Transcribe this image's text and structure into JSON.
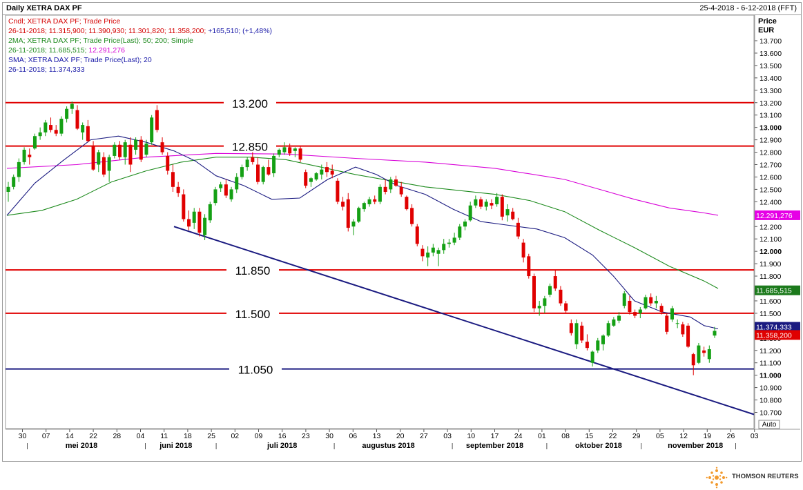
{
  "header": {
    "title": "Daily XETRA DAX PF",
    "date_range": "25-4-2018 - 6-12-2018 (FFT)"
  },
  "legend": [
    {
      "text": "Cndl; XETRA DAX PF; Trade Price",
      "color": "#d40000"
    },
    {
      "text": "26-11-2018; 11.315,900; 11.390,930; 11.301,820; 11.358,200; ",
      "color": "#d40000",
      "extra": "+165,510; (+1,48%)",
      "extra_color": "#1a1aa8"
    },
    {
      "text": "2MA; XETRA DAX PF; Trade Price(Last);  50; 200; Simple",
      "color": "#1e8a1e"
    },
    {
      "text": "26-11-2018; 11.685,515; ",
      "color": "#1e8a1e",
      "extra": "12.291,276",
      "extra_color": "#d400d4"
    },
    {
      "text": "SMA; XETRA DAX PF; Trade Price(Last);  20",
      "color": "#1a1aa8"
    },
    {
      "text": "26-11-2018; 11.374,333",
      "color": "#1a1aa8"
    }
  ],
  "chart_data": {
    "type": "candlestick",
    "title": "Daily XETRA DAX PF",
    "ylabel_top": "Price",
    "ylabel_unit": "EUR",
    "ylim": [
      10650,
      13750
    ],
    "y_ticks": [
      {
        "v": 13700,
        "label": "13.700"
      },
      {
        "v": 13600,
        "label": "13.600"
      },
      {
        "v": 13500,
        "label": "13.500"
      },
      {
        "v": 13400,
        "label": "13.400"
      },
      {
        "v": 13300,
        "label": "13.300"
      },
      {
        "v": 13200,
        "label": "13.200"
      },
      {
        "v": 13100,
        "label": "13.100"
      },
      {
        "v": 13000,
        "label": "13.000",
        "bold": true
      },
      {
        "v": 12900,
        "label": "12.900"
      },
      {
        "v": 12800,
        "label": "12.800"
      },
      {
        "v": 12700,
        "label": "12.700"
      },
      {
        "v": 12600,
        "label": "12.600"
      },
      {
        "v": 12500,
        "label": "12.500"
      },
      {
        "v": 12400,
        "label": "12.400"
      },
      {
        "v": 12300,
        "label": "12.300"
      },
      {
        "v": 12200,
        "label": "12.200"
      },
      {
        "v": 12100,
        "label": "12.100"
      },
      {
        "v": 12000,
        "label": "12.000",
        "bold": true
      },
      {
        "v": 11900,
        "label": "11.900"
      },
      {
        "v": 11800,
        "label": "11.800"
      },
      {
        "v": 11700,
        "label": "11.700"
      },
      {
        "v": 11600,
        "label": "11.600"
      },
      {
        "v": 11500,
        "label": "11.500"
      },
      {
        "v": 11400,
        "label": "11.400"
      },
      {
        "v": 11300,
        "label": "11.300"
      },
      {
        "v": 11200,
        "label": "11.200"
      },
      {
        "v": 11100,
        "label": "11.100"
      },
      {
        "v": 11000,
        "label": "11.000",
        "bold": true
      },
      {
        "v": 10900,
        "label": "10.900"
      },
      {
        "v": 10800,
        "label": "10.800"
      },
      {
        "v": 10700,
        "label": "10.700"
      }
    ],
    "x_days": [
      "30",
      "07",
      "14",
      "22",
      "28",
      "04",
      "11",
      "18",
      "25",
      "02",
      "09",
      "16",
      "23",
      "30",
      "06",
      "13",
      "20",
      "27",
      "03",
      "10",
      "17",
      "24",
      "01",
      "08",
      "15",
      "22",
      "29",
      "05",
      "12",
      "19",
      "26",
      "03"
    ],
    "x_months": [
      "mei 2018",
      "juni 2018",
      "juli 2018",
      "augustus 2018",
      "september 2018",
      "oktober 2018",
      "november 2018"
    ],
    "axis_button": "Auto",
    "horizontal_levels": [
      {
        "value": 13200,
        "label": "13.200",
        "color": "#e00000"
      },
      {
        "value": 12850,
        "label": "12.850",
        "color": "#e00000"
      },
      {
        "value": 11850,
        "label": "11.850",
        "color": "#e00000"
      },
      {
        "value": 11500,
        "label": "11.500",
        "color": "#e00000"
      },
      {
        "value": 11050,
        "label": "11.050",
        "color": "#1a1a80"
      }
    ],
    "trendline": {
      "from": {
        "day": "18 jun",
        "value": 12200
      },
      "to": {
        "day": "03 dec",
        "value": 10700
      },
      "color": "#1a1a80"
    },
    "last_values": [
      {
        "label": "12.291,276",
        "value": 12291,
        "bg": "#e600e6"
      },
      {
        "label": "11.685,515",
        "value": 11685,
        "bg": "#1c7a1c"
      },
      {
        "label": "11.374,333",
        "value": 11374,
        "bg": "#1a1a80"
      },
      {
        "label": "11.358,200",
        "value": 11358,
        "bg": "#e00000"
      }
    ],
    "series": [
      {
        "name": "Cndl; XETRA DAX PF; Trade Price",
        "type": "candlestick"
      },
      {
        "name": "2MA 50",
        "color": "#1c8a1c",
        "points": [
          [
            0,
            12290
          ],
          [
            50,
            12330
          ],
          [
            100,
            12420
          ],
          [
            150,
            12560
          ],
          [
            200,
            12650
          ],
          [
            250,
            12720
          ],
          [
            300,
            12760
          ],
          [
            350,
            12760
          ],
          [
            400,
            12740
          ],
          [
            450,
            12680
          ],
          [
            500,
            12620
          ],
          [
            550,
            12570
          ],
          [
            600,
            12520
          ],
          [
            650,
            12490
          ],
          [
            700,
            12460
          ],
          [
            750,
            12410
          ],
          [
            800,
            12320
          ],
          [
            850,
            12170
          ],
          [
            900,
            12030
          ],
          [
            950,
            11880
          ],
          [
            1000,
            11760
          ],
          [
            1020,
            11700
          ]
        ]
      },
      {
        "name": "2MA 200",
        "color": "#d800d8",
        "points": [
          [
            0,
            12670
          ],
          [
            100,
            12700
          ],
          [
            200,
            12760
          ],
          [
            300,
            12790
          ],
          [
            400,
            12785
          ],
          [
            500,
            12750
          ],
          [
            600,
            12720
          ],
          [
            700,
            12670
          ],
          [
            800,
            12580
          ],
          [
            850,
            12500
          ],
          [
            900,
            12420
          ],
          [
            950,
            12350
          ],
          [
            1000,
            12310
          ],
          [
            1020,
            12291
          ]
        ]
      },
      {
        "name": "SMA 20",
        "color": "#1a1a80",
        "points": [
          [
            0,
            12290
          ],
          [
            40,
            12550
          ],
          [
            80,
            12730
          ],
          [
            120,
            12900
          ],
          [
            160,
            12930
          ],
          [
            200,
            12880
          ],
          [
            240,
            12810
          ],
          [
            270,
            12730
          ],
          [
            300,
            12610
          ],
          [
            340,
            12530
          ],
          [
            380,
            12420
          ],
          [
            420,
            12430
          ],
          [
            460,
            12580
          ],
          [
            500,
            12680
          ],
          [
            530,
            12620
          ],
          [
            560,
            12530
          ],
          [
            600,
            12460
          ],
          [
            640,
            12340
          ],
          [
            680,
            12240
          ],
          [
            720,
            12210
          ],
          [
            760,
            12180
          ],
          [
            800,
            12110
          ],
          [
            840,
            11970
          ],
          [
            870,
            11800
          ],
          [
            900,
            11600
          ],
          [
            940,
            11510
          ],
          [
            980,
            11470
          ],
          [
            1000,
            11400
          ],
          [
            1020,
            11374
          ]
        ]
      }
    ],
    "candles": [
      [
        12480,
        12560,
        12400,
        12520
      ],
      [
        12520,
        12620,
        12500,
        12600
      ],
      [
        12600,
        12750,
        12560,
        12720
      ],
      [
        12720,
        12840,
        12700,
        12820
      ],
      [
        12780,
        12830,
        12700,
        12760
      ],
      [
        12830,
        12950,
        12820,
        12930
      ],
      [
        12930,
        13000,
        12900,
        12960
      ],
      [
        12960,
        13060,
        12930,
        13040
      ],
      [
        13020,
        13080,
        12960,
        12980
      ],
      [
        12980,
        13020,
        12930,
        12950
      ],
      [
        12950,
        13090,
        12930,
        13070
      ],
      [
        13070,
        13170,
        13040,
        13150
      ],
      [
        13150,
        13210,
        13110,
        13190
      ],
      [
        13140,
        13180,
        12980,
        12990
      ],
      [
        12960,
        13040,
        12900,
        13020
      ],
      [
        13010,
        13060,
        12880,
        12890
      ],
      [
        12850,
        12890,
        12650,
        12660
      ],
      [
        12700,
        12820,
        12640,
        12800
      ],
      [
        12760,
        12800,
        12600,
        12620
      ],
      [
        12650,
        12780,
        12560,
        12760
      ],
      [
        12770,
        12880,
        12750,
        12860
      ],
      [
        12860,
        12890,
        12740,
        12760
      ],
      [
        12760,
        12900,
        12700,
        12880
      ],
      [
        12860,
        12920,
        12640,
        12700
      ],
      [
        12820,
        12920,
        12780,
        12900
      ],
      [
        12900,
        12930,
        12720,
        12740
      ],
      [
        12780,
        12900,
        12760,
        12870
      ],
      [
        12880,
        13100,
        12860,
        13080
      ],
      [
        13140,
        13180,
        12960,
        12980
      ],
      [
        12880,
        12920,
        12780,
        12800
      ],
      [
        12770,
        12800,
        12620,
        12650
      ],
      [
        12640,
        12700,
        12480,
        12520
      ],
      [
        12520,
        12560,
        12440,
        12470
      ],
      [
        12460,
        12500,
        12240,
        12260
      ],
      [
        12260,
        12330,
        12170,
        12200
      ],
      [
        12230,
        12350,
        12180,
        12320
      ],
      [
        12320,
        12350,
        12120,
        12150
      ],
      [
        12130,
        12300,
        12090,
        12270
      ],
      [
        12250,
        12400,
        12230,
        12380
      ],
      [
        12390,
        12520,
        12370,
        12500
      ],
      [
        12510,
        12560,
        12480,
        12540
      ],
      [
        12540,
        12580,
        12430,
        12450
      ],
      [
        12420,
        12520,
        12400,
        12500
      ],
      [
        12500,
        12630,
        12470,
        12600
      ],
      [
        12600,
        12700,
        12580,
        12680
      ],
      [
        12680,
        12760,
        12650,
        12740
      ],
      [
        12760,
        12800,
        12700,
        12720
      ],
      [
        12700,
        12760,
        12540,
        12560
      ],
      [
        12560,
        12690,
        12540,
        12680
      ],
      [
        12680,
        12740,
        12610,
        12620
      ],
      [
        12630,
        12790,
        12600,
        12770
      ],
      [
        12780,
        12830,
        12760,
        12820
      ],
      [
        12800,
        12880,
        12780,
        12840
      ],
      [
        12840,
        12870,
        12770,
        12790
      ],
      [
        12810,
        12840,
        12760,
        12830
      ],
      [
        12830,
        12850,
        12720,
        12740
      ],
      [
        12640,
        12660,
        12510,
        12530
      ],
      [
        12560,
        12600,
        12520,
        12590
      ],
      [
        12580,
        12640,
        12570,
        12630
      ],
      [
        12620,
        12700,
        12580,
        12660
      ],
      [
        12680,
        12720,
        12600,
        12640
      ],
      [
        12650,
        12700,
        12590,
        12620
      ],
      [
        12570,
        12590,
        12380,
        12400
      ],
      [
        12400,
        12440,
        12330,
        12360
      ],
      [
        12420,
        12470,
        12160,
        12190
      ],
      [
        12200,
        12260,
        12130,
        12240
      ],
      [
        12240,
        12360,
        12230,
        12350
      ],
      [
        12340,
        12400,
        12320,
        12390
      ],
      [
        12380,
        12440,
        12360,
        12420
      ],
      [
        12420,
        12450,
        12380,
        12400
      ],
      [
        12400,
        12540,
        12380,
        12520
      ],
      [
        12520,
        12580,
        12460,
        12480
      ],
      [
        12500,
        12600,
        12470,
        12580
      ],
      [
        12580,
        12610,
        12520,
        12530
      ],
      [
        12520,
        12560,
        12440,
        12460
      ],
      [
        12440,
        12450,
        12330,
        12340
      ],
      [
        12350,
        12380,
        12200,
        12220
      ],
      [
        12200,
        12220,
        12040,
        12060
      ],
      [
        12020,
        12050,
        11920,
        11960
      ],
      [
        11950,
        12040,
        11880,
        11990
      ],
      [
        11990,
        12060,
        11960,
        12030
      ],
      [
        11980,
        12030,
        11880,
        12010
      ],
      [
        12010,
        12100,
        11980,
        12060
      ],
      [
        12060,
        12100,
        12030,
        12070
      ],
      [
        12070,
        12150,
        12050,
        12110
      ],
      [
        12110,
        12220,
        12090,
        12200
      ],
      [
        12200,
        12260,
        12170,
        12240
      ],
      [
        12250,
        12400,
        12240,
        12370
      ],
      [
        12370,
        12450,
        12350,
        12420
      ],
      [
        12420,
        12440,
        12340,
        12360
      ],
      [
        12360,
        12420,
        12330,
        12400
      ],
      [
        12390,
        12420,
        12340,
        12370
      ],
      [
        12380,
        12470,
        12360,
        12440
      ],
      [
        12440,
        12460,
        12250,
        12280
      ],
      [
        12290,
        12380,
        12240,
        12340
      ],
      [
        12320,
        12350,
        12250,
        12260
      ],
      [
        12230,
        12270,
        12100,
        12120
      ],
      [
        12070,
        12100,
        11910,
        11950
      ],
      [
        11960,
        11980,
        11780,
        11800
      ],
      [
        11800,
        11820,
        11510,
        11540
      ],
      [
        11540,
        11600,
        11480,
        11560
      ],
      [
        11560,
        11640,
        11500,
        11620
      ],
      [
        11650,
        11740,
        11630,
        11720
      ],
      [
        11800,
        11850,
        11680,
        11700
      ],
      [
        11690,
        11720,
        11560,
        11580
      ],
      [
        11580,
        11600,
        11500,
        11520
      ],
      [
        11420,
        11450,
        11320,
        11340
      ],
      [
        11250,
        11450,
        11210,
        11420
      ],
      [
        11400,
        11430,
        11260,
        11280
      ],
      [
        11270,
        11330,
        11200,
        11220
      ],
      [
        11100,
        11200,
        11070,
        11190
      ],
      [
        11200,
        11300,
        11180,
        11280
      ],
      [
        11250,
        11330,
        11200,
        11320
      ],
      [
        11320,
        11440,
        11310,
        11420
      ],
      [
        11400,
        11470,
        11390,
        11450
      ],
      [
        11440,
        11510,
        11420,
        11480
      ],
      [
        11560,
        11680,
        11540,
        11660
      ],
      [
        11600,
        11640,
        11490,
        11510
      ],
      [
        11510,
        11530,
        11460,
        11480
      ],
      [
        11500,
        11550,
        11460,
        11530
      ],
      [
        11540,
        11650,
        11530,
        11630
      ],
      [
        11630,
        11660,
        11560,
        11580
      ],
      [
        11580,
        11640,
        11540,
        11600
      ],
      [
        11560,
        11580,
        11490,
        11510
      ],
      [
        11480,
        11500,
        11330,
        11350
      ],
      [
        11450,
        11560,
        11430,
        11540
      ],
      [
        11420,
        11450,
        11380,
        11420
      ],
      [
        11410,
        11430,
        11310,
        11330
      ],
      [
        11400,
        11420,
        11220,
        11230
      ],
      [
        11170,
        11180,
        11000,
        11080
      ],
      [
        11100,
        11260,
        11090,
        11240
      ],
      [
        11200,
        11230,
        11150,
        11180
      ],
      [
        11130,
        11240,
        11100,
        11210
      ],
      [
        11320,
        11390,
        11300,
        11358
      ]
    ]
  },
  "branding": {
    "name": "THOMSON REUTERS"
  }
}
